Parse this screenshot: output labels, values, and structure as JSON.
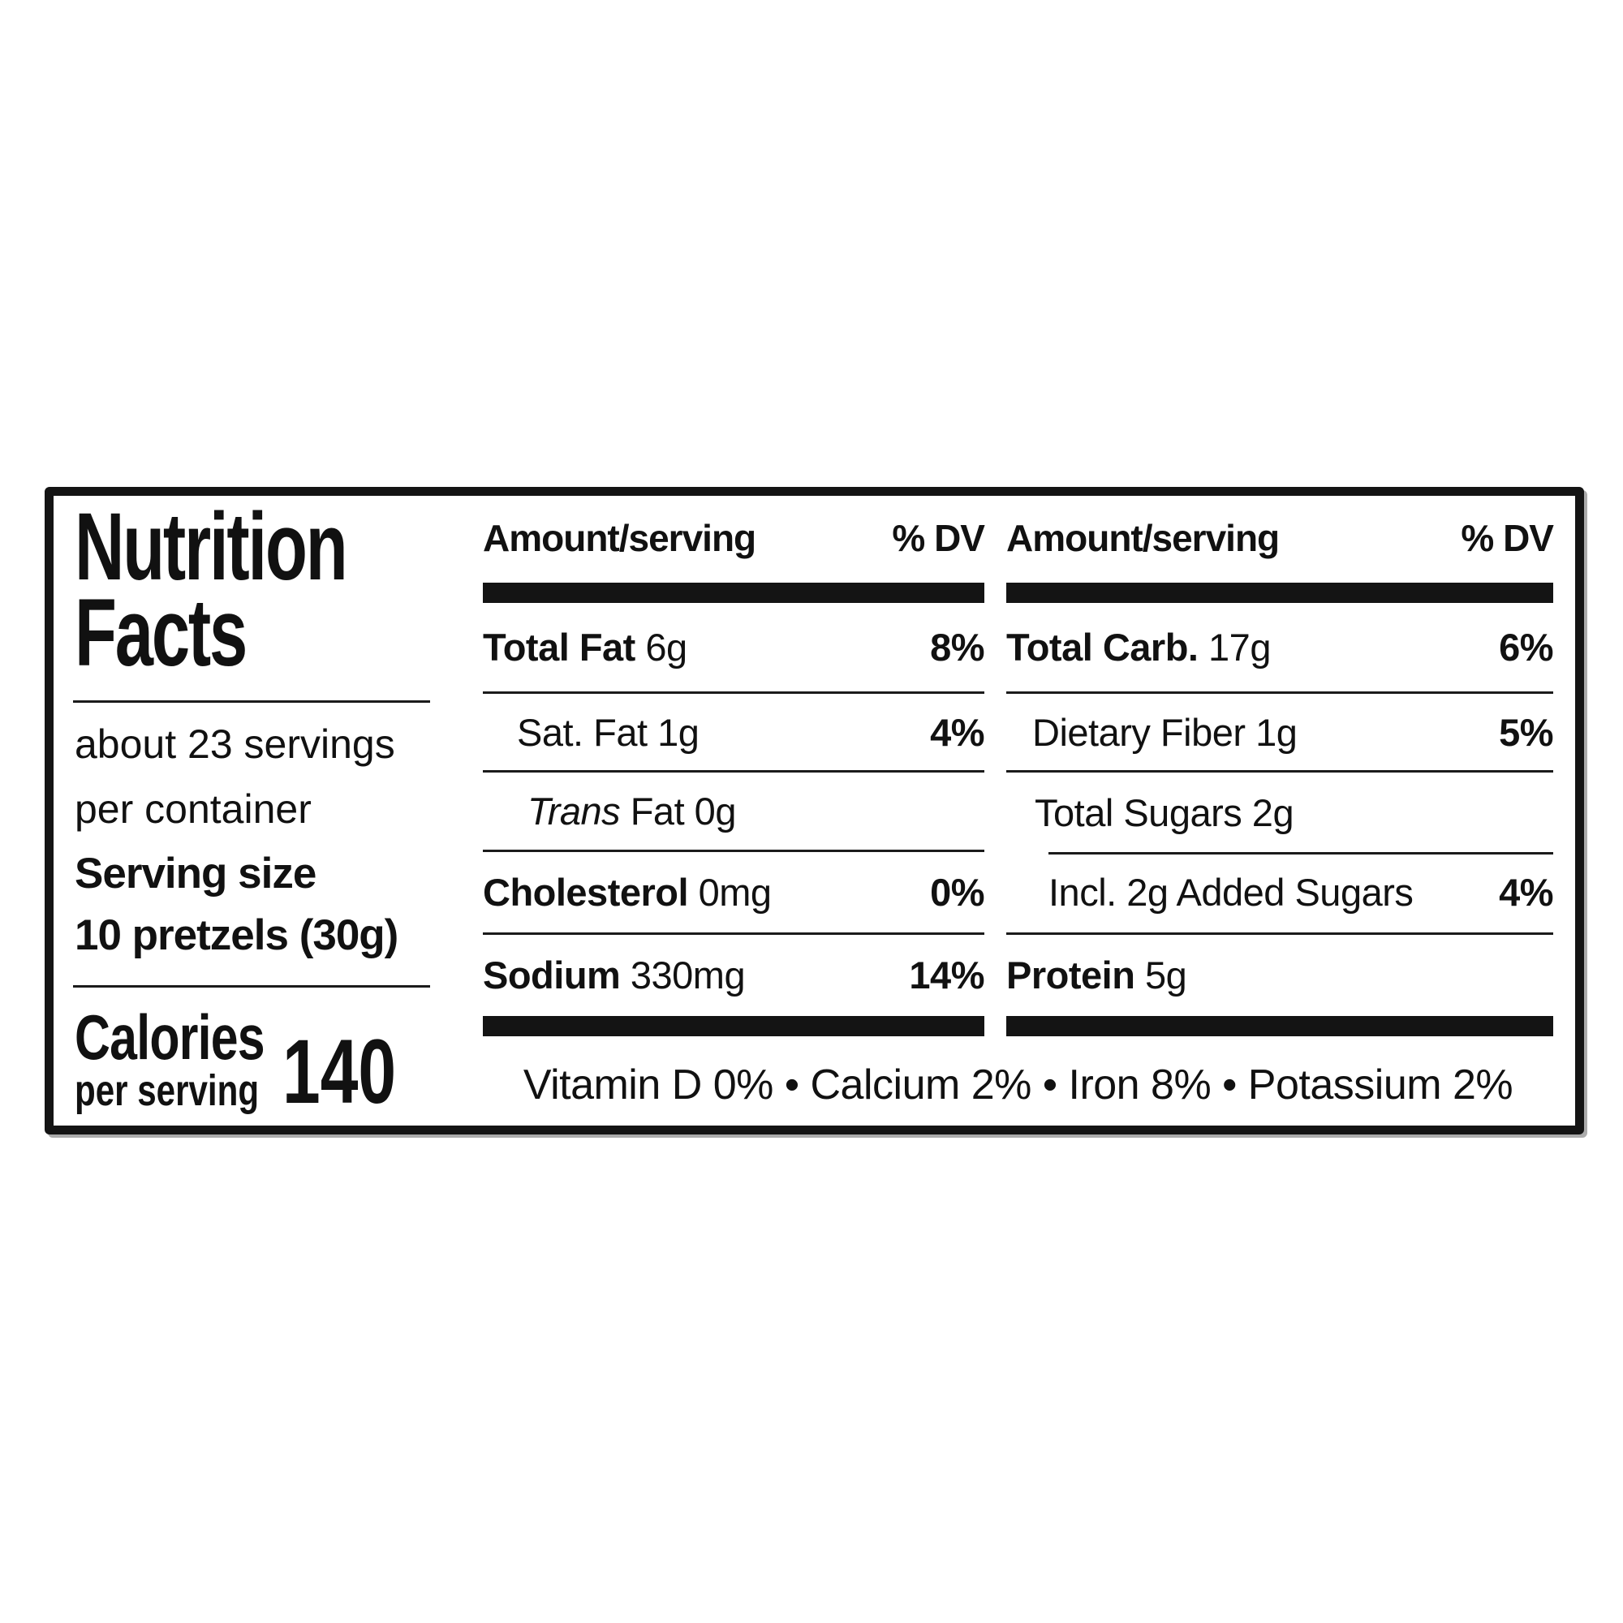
{
  "page": {
    "background": "#ffffff"
  },
  "label": {
    "title_line1": "Nutrition",
    "title_line2": "Facts",
    "servings_line1": "about 23 servings",
    "servings_line2": "per container",
    "serving_size_label": "Serving size",
    "serving_size_value": "10 pretzels (30g)",
    "calories_label": "Calories",
    "calories_sublabel": "per serving",
    "calories_value": "140",
    "column_header": {
      "amount": "Amount/serving",
      "dv": "% DV"
    },
    "mid_rows": [
      {
        "strong": "Total Fat",
        "regular": " 6g",
        "dv": "8%"
      },
      {
        "regular": "Sat. Fat 1g",
        "dv": "4%"
      },
      {
        "italic": "Trans",
        "regular": " Fat 0g",
        "dv": ""
      },
      {
        "strong": "Cholesterol",
        "regular": " 0mg",
        "dv": "0%"
      },
      {
        "strong": "Sodium",
        "regular": " 330mg",
        "dv": "14%"
      }
    ],
    "right_rows": [
      {
        "strong": "Total Carb.",
        "regular": " 17g",
        "dv": "6%"
      },
      {
        "regular": "Dietary Fiber 1g",
        "dv": "5%"
      },
      {
        "regular": "Total Sugars 2g",
        "dv": ""
      },
      {
        "regular": "Incl. 2g Added Sugars",
        "dv": "4%"
      },
      {
        "strong": "Protein",
        "regular": " 5g",
        "dv": ""
      }
    ],
    "vitamins": "Vitamin D 0% • Calcium 2% • Iron 8% • Potassium 2%",
    "colors": {
      "ink": "#111111",
      "hairline": "#1b1b1b",
      "background": "#ffffff"
    }
  }
}
